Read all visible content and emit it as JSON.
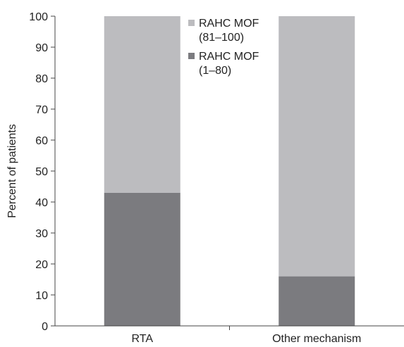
{
  "chart_data": {
    "type": "bar",
    "stacked": true,
    "categories": [
      "RTA",
      "Other mechanism"
    ],
    "series": [
      {
        "name": "RAHC MOF (1–80)",
        "values": [
          43,
          16
        ],
        "color": "#7b7b7f"
      },
      {
        "name": "RAHC MOF (81–100)",
        "values": [
          57,
          84
        ],
        "color": "#bcbcbf"
      }
    ],
    "ylabel": "Percent of patients",
    "xlabel": "",
    "ylim": [
      0,
      100
    ],
    "yticks": [
      0,
      10,
      20,
      30,
      40,
      50,
      60,
      70,
      80,
      90,
      100
    ],
    "grid": false,
    "legend": {
      "placement": "top-center",
      "entries": [
        {
          "lines": [
            "RAHC MOF",
            "(81–100)"
          ],
          "color": "#bcbcbf"
        },
        {
          "lines": [
            "RAHC MOF",
            "(1–80)"
          ],
          "color": "#7b7b7f"
        }
      ]
    },
    "axis_color": "#444444"
  }
}
